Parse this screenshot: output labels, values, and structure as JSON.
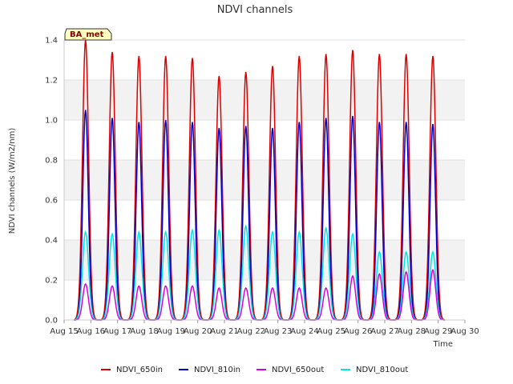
{
  "chart_data": {
    "type": "line",
    "title": "NDVI channels",
    "xlabel": "Time",
    "ylabel": "NDVI channels (W/m2/nm)",
    "ylim": [
      0,
      1.4
    ],
    "yticks": [
      "0.0",
      "0.2",
      "0.4",
      "0.6",
      "0.8",
      "1.0",
      "1.2",
      "1.4"
    ],
    "xlim": [
      15,
      30
    ],
    "xticks": [
      "Aug 15",
      "Aug 16",
      "Aug 17",
      "Aug 18",
      "Aug 19",
      "Aug 20",
      "Aug 21",
      "Aug 22",
      "Aug 23",
      "Aug 24",
      "Aug 25",
      "Aug 26",
      "Aug 27",
      "Aug 28",
      "Aug 29",
      "Aug 30"
    ],
    "grid": "horizontal bands",
    "legend_position": "bottom",
    "annotation": "BA_met",
    "day_peak_x": [
      15.8,
      16.8,
      17.8,
      18.8,
      19.8,
      20.8,
      21.8,
      22.8,
      23.8,
      24.8,
      25.8,
      26.8,
      27.8,
      28.8
    ],
    "series": [
      {
        "name": "NDVI_650in",
        "color": "#dd0000",
        "peaks": [
          1.4,
          1.34,
          1.32,
          1.32,
          1.31,
          1.22,
          1.24,
          1.27,
          1.32,
          1.33,
          1.35,
          1.33,
          1.33,
          1.32
        ]
      },
      {
        "name": "NDVI_810in",
        "color": "#0000cc",
        "peaks": [
          1.05,
          1.01,
          0.99,
          1.0,
          0.99,
          0.96,
          0.97,
          0.96,
          0.99,
          1.01,
          1.02,
          0.99,
          0.99,
          0.98
        ]
      },
      {
        "name": "NDVI_650out",
        "color": "#dd00dd",
        "peaks": [
          0.18,
          0.17,
          0.17,
          0.17,
          0.17,
          0.16,
          0.16,
          0.16,
          0.16,
          0.16,
          0.22,
          0.23,
          0.24,
          0.25
        ]
      },
      {
        "name": "NDVI_810out",
        "color": "#00e5e5",
        "peaks": [
          0.44,
          0.43,
          0.44,
          0.44,
          0.45,
          0.45,
          0.47,
          0.44,
          0.44,
          0.46,
          0.43,
          0.34,
          0.34,
          0.34
        ]
      }
    ]
  }
}
